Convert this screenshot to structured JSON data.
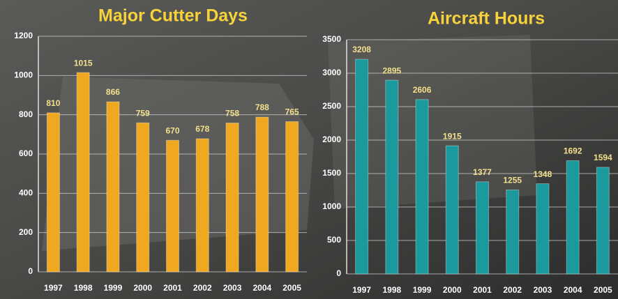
{
  "chart_data": [
    {
      "type": "bar",
      "title": "Major Cutter Days",
      "categories": [
        "1997",
        "1998",
        "1999",
        "2000",
        "2001",
        "2002",
        "2003",
        "2004",
        "2005"
      ],
      "values": [
        810,
        1015,
        866,
        759,
        670,
        678,
        758,
        788,
        765
      ],
      "color": "#f0a820",
      "ylim": [
        0,
        1200
      ],
      "yticks": [
        0,
        200,
        400,
        600,
        800,
        1000,
        1200
      ],
      "grid": true
    },
    {
      "type": "bar",
      "title": "Aircraft Hours",
      "categories": [
        "1997",
        "1998",
        "1999",
        "2000",
        "2001",
        "2002",
        "2003",
        "2004",
        "2005"
      ],
      "values": [
        3208,
        2895,
        2606,
        1915,
        1377,
        1255,
        1348,
        1692,
        1594
      ],
      "color": "#1a9a9c",
      "ylim": [
        0,
        3500
      ],
      "yticks": [
        0,
        500,
        1000,
        1500,
        2000,
        2500,
        3000,
        3500
      ],
      "grid": true
    }
  ]
}
